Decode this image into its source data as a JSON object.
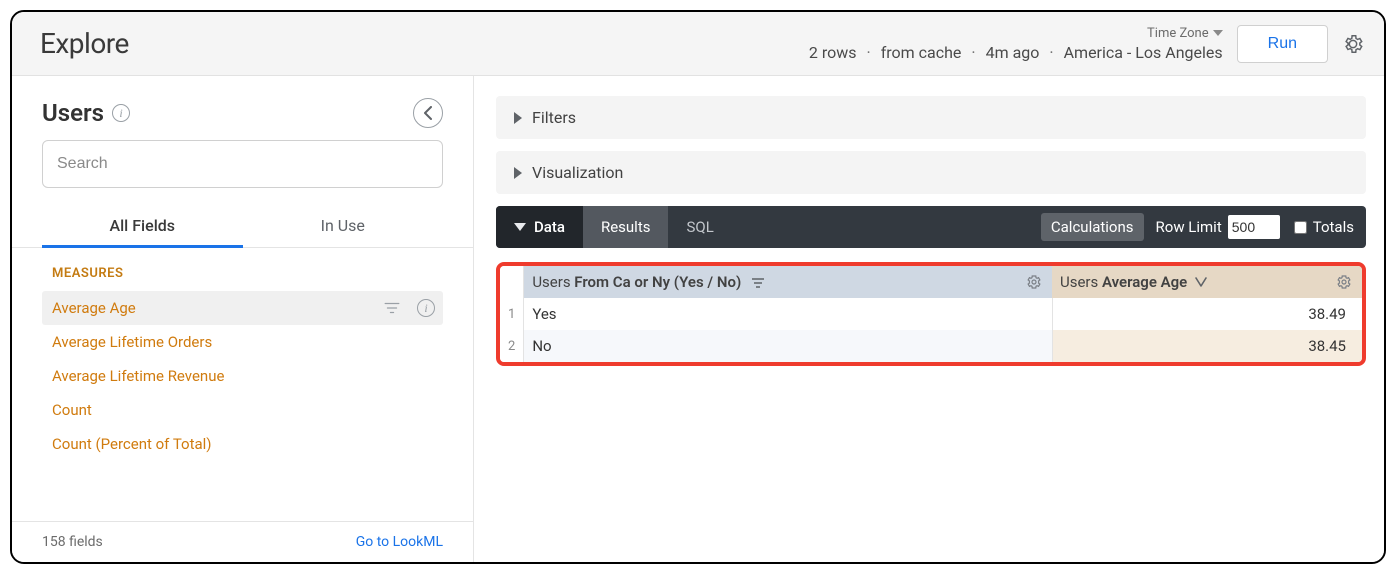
{
  "header": {
    "title": "Explore",
    "timezone_label": "Time Zone",
    "info_rows": "2 rows",
    "info_cache": "from cache",
    "info_age": "4m ago",
    "info_tz": "America - Los Angeles",
    "run_label": "Run"
  },
  "sidebar": {
    "title": "Users",
    "search_placeholder": "Search",
    "tab_all": "All Fields",
    "tab_inuse": "In Use",
    "section_label": "MEASURES",
    "fields": [
      {
        "name": "Average Age",
        "selected": true
      },
      {
        "name": "Average Lifetime Orders",
        "selected": false
      },
      {
        "name": "Average Lifetime Revenue",
        "selected": false
      },
      {
        "name": "Count",
        "selected": false
      },
      {
        "name": "Count (Percent of Total)",
        "selected": false
      }
    ],
    "footer_count": "158 fields",
    "footer_link": "Go to LookML"
  },
  "panels": {
    "filters": "Filters",
    "visualization": "Visualization"
  },
  "databar": {
    "data": "Data",
    "results": "Results",
    "sql": "SQL",
    "calculations": "Calculations",
    "row_limit_label": "Row Limit",
    "row_limit_value": "500",
    "totals_label": "Totals"
  },
  "table": {
    "dim_header_prefix": "Users ",
    "dim_header_rest": "From Ca or Ny (Yes / No)",
    "mea_header_prefix": "Users ",
    "mea_header_bold": "Average Age",
    "rows": [
      {
        "n": "1",
        "dim": "Yes",
        "mea": "38.49"
      },
      {
        "n": "2",
        "dim": "No",
        "mea": "38.45"
      }
    ],
    "colors": {
      "highlight_border": "#ef3b2d",
      "dim_header_bg": "#cfd8e3",
      "mea_header_bg": "#e6d8c5",
      "mea_row_alt_bg": "#f6ede0",
      "dim_row_alt_bg": "#f6f8fb",
      "databar_bg": "#333940"
    }
  }
}
